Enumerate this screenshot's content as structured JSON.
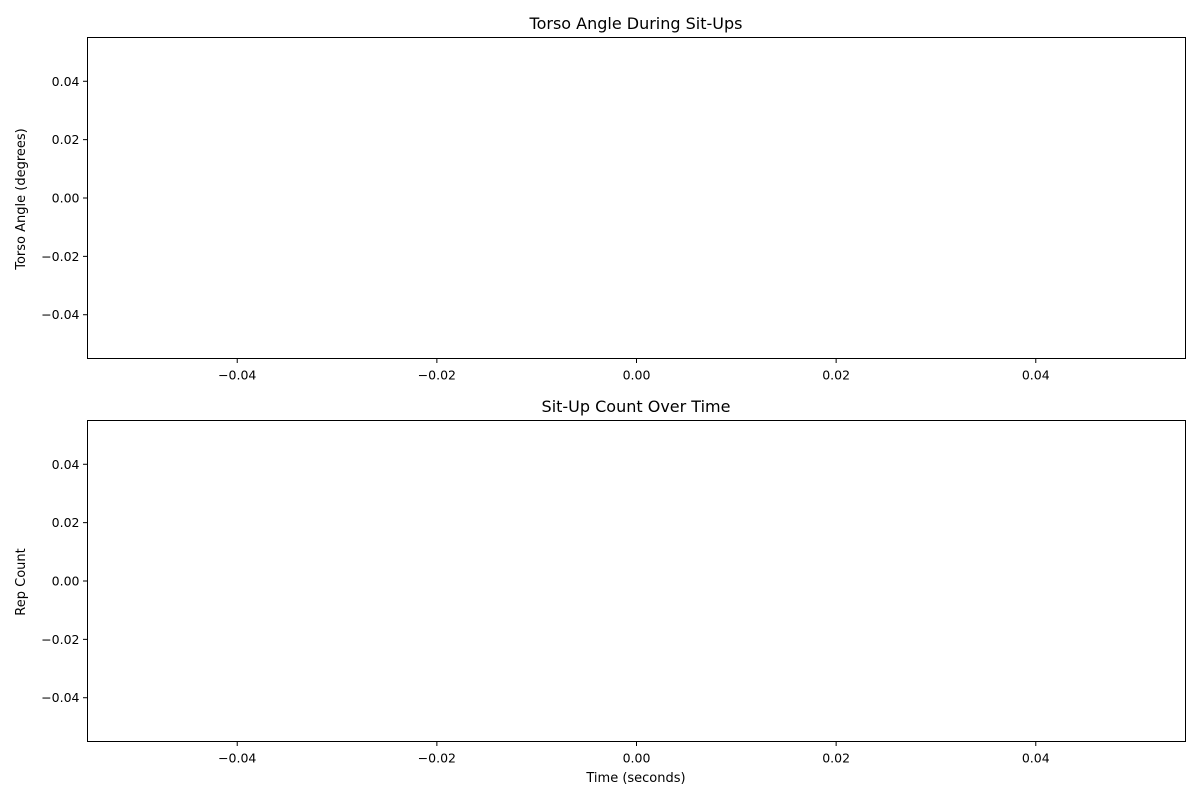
{
  "chart_data": [
    {
      "type": "line",
      "title": "Torso Angle During Sit-Ups",
      "xlabel": "",
      "ylabel": "Torso Angle (degrees)",
      "x": [],
      "series": [
        {
          "values": []
        }
      ],
      "xlim": [
        -0.055,
        0.055
      ],
      "ylim": [
        -0.055,
        0.055
      ],
      "xticks": [
        -0.04,
        -0.02,
        0.0,
        0.02,
        0.04
      ],
      "xtick_labels": [
        "−0.04",
        "−0.02",
        "0.00",
        "0.02",
        "0.04"
      ],
      "yticks": [
        0.04,
        0.02,
        0.0,
        -0.02,
        -0.04
      ],
      "ytick_labels": [
        "0.04",
        "0.02",
        "0.00",
        "−0.02",
        "−0.04"
      ],
      "grid": false,
      "legend": false
    },
    {
      "type": "line",
      "title": "Sit-Up Count Over Time",
      "xlabel": "Time (seconds)",
      "ylabel": "Rep Count",
      "x": [],
      "series": [
        {
          "values": []
        }
      ],
      "xlim": [
        -0.055,
        0.055
      ],
      "ylim": [
        -0.055,
        0.055
      ],
      "xticks": [
        -0.04,
        -0.02,
        0.0,
        0.02,
        0.04
      ],
      "xtick_labels": [
        "−0.04",
        "−0.02",
        "0.00",
        "0.02",
        "0.04"
      ],
      "yticks": [
        0.04,
        0.02,
        0.0,
        -0.02,
        -0.04
      ],
      "ytick_labels": [
        "0.04",
        "0.02",
        "0.00",
        "−0.02",
        "−0.04"
      ],
      "grid": false,
      "legend": false
    }
  ]
}
